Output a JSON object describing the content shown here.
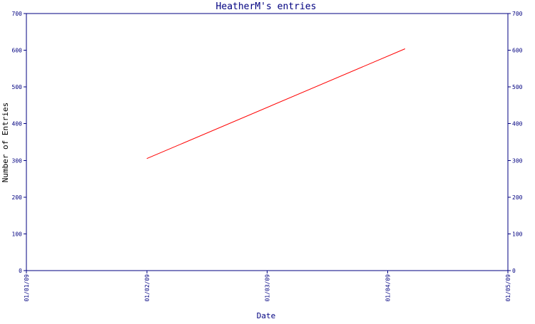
{
  "chart_data": {
    "type": "line",
    "title": "HeatherM's entries",
    "xlabel": "Date",
    "ylabel": "Number of Entries",
    "x_ticks": [
      "01/01/09",
      "01/02/09",
      "01/03/09",
      "01/04/09",
      "01/05/09"
    ],
    "y_ticks": [
      "0",
      "100",
      "200",
      "300",
      "400",
      "500",
      "600",
      "700"
    ],
    "xlim": [
      "2009-01-01",
      "2009-01-05"
    ],
    "ylim": [
      0,
      700
    ],
    "grid": false,
    "series": [
      {
        "x": [
          "2009-01-02",
          "2009-01-04 03:30"
        ],
        "y": [
          305,
          604
        ]
      }
    ]
  },
  "colors": {
    "axis": "#000080",
    "line": "#ff0000",
    "title": "#000080",
    "ylabel": "#000000"
  }
}
